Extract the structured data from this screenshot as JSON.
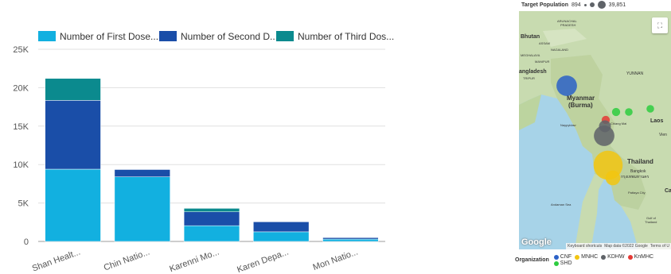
{
  "chart_data": {
    "type": "bar",
    "stacked": true,
    "categories": [
      "Shan Healt...",
      "Chin Natio...",
      "Karenni Mo...",
      "Karen Depa...",
      "Mon Natio..."
    ],
    "series": [
      {
        "name": "Number of First Dose...",
        "color": "#12b0e0",
        "values": [
          9400,
          8400,
          2050,
          1250,
          300
        ]
      },
      {
        "name": "Number of Second D...",
        "color": "#1a4ea8",
        "values": [
          8950,
          950,
          1800,
          1300,
          200
        ]
      },
      {
        "name": "Number of Third Dos...",
        "color": "#0b8a8e",
        "values": [
          2850,
          0,
          450,
          0,
          50
        ]
      }
    ],
    "ylim": [
      0,
      25000
    ],
    "yticks": [
      "0",
      "5K",
      "10K",
      "15K",
      "20K",
      "25K"
    ],
    "grid": true,
    "legend_position": "top"
  },
  "map": {
    "target_population_label": "Target Population",
    "pop_min": "894",
    "pop_max": "39,851",
    "place_labels": {
      "bhutan": "Bhutan",
      "arunachal": "ARUNACHAL\nPRADESH",
      "assam": "ASSAM",
      "nagaland": "NAGALAND",
      "meghalaya": "MEGHALAYA",
      "manipur": "MANIPUR",
      "bangladesh": "angladesh",
      "tripura": "TRIPUR",
      "myanmar": "Myanmar\n(Burma)",
      "yunnan": "YUNNAN",
      "chiang_mai": "Chiang Mai",
      "laos": "Laos",
      "thailand": "Thailand",
      "bangkok": "Bangkok",
      "bangkok_thai": "กรุงเทพมหานคร",
      "pattaya": "Pattaya City",
      "andaman": "Andaman Sea",
      "gulf": "Gulf of\nThailand",
      "naypyidaw": "Naypyidaw",
      "vientiane": "Vien",
      "cambodia": "Ca"
    },
    "google_logo": "Google",
    "attribution": [
      "Keyboard shortcuts",
      "Map data ©2022 Google",
      "Terms of U"
    ],
    "organization_label": "Organization",
    "organizations": [
      {
        "name": "CNF",
        "color": "#2c62c7"
      },
      {
        "name": "MNHC",
        "color": "#f2c511"
      },
      {
        "name": "KDHW",
        "color": "#5f6368"
      },
      {
        "name": "KnMHC",
        "color": "#e53935"
      },
      {
        "name": "SHD",
        "color": "#2ecc40"
      }
    ],
    "bubbles": [
      {
        "org": "CNF",
        "size": 0.55
      },
      {
        "org": "SHD",
        "size": 0.12
      },
      {
        "org": "SHD",
        "size": 0.1
      },
      {
        "org": "SHD",
        "size": 0.1
      },
      {
        "org": "KnMHC",
        "size": 0.12
      },
      {
        "org": "KDHW",
        "size": 0.25
      },
      {
        "org": "KDHW",
        "size": 0.55
      },
      {
        "org": "MNHC",
        "size": 0.85
      },
      {
        "org": "MNHC",
        "size": 0.35
      }
    ]
  }
}
